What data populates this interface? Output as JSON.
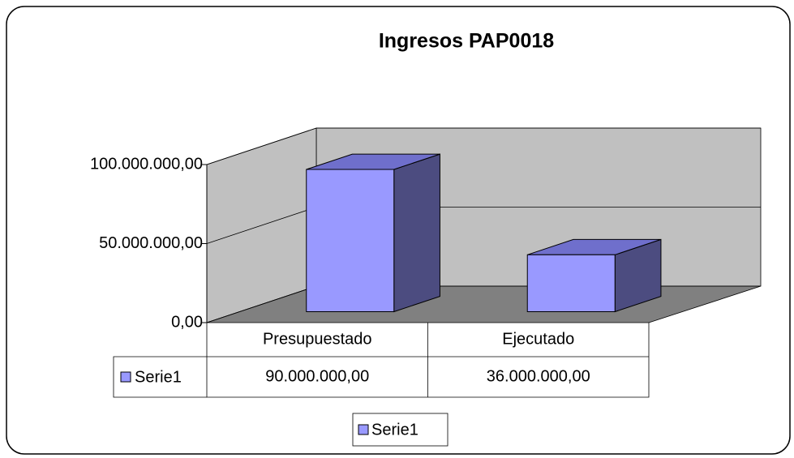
{
  "chart_data": {
    "type": "bar",
    "title": "Ingresos PAP0018",
    "categories": [
      "Presupuestado",
      "Ejecutado"
    ],
    "series": [
      {
        "name": "Serie1",
        "color": "#9999ff",
        "values": [
          90000000,
          36000000
        ],
        "value_labels": [
          "90.000.000,00",
          "36.000.000,00"
        ]
      }
    ],
    "ylim": [
      0,
      100000000
    ],
    "yticks": [
      {
        "value": 0,
        "label": "0,00"
      },
      {
        "value": 50000000,
        "label": "50.000.000,00"
      },
      {
        "value": 100000000,
        "label": "100.000.000,00"
      }
    ],
    "grid": true,
    "legend": "bottom"
  }
}
